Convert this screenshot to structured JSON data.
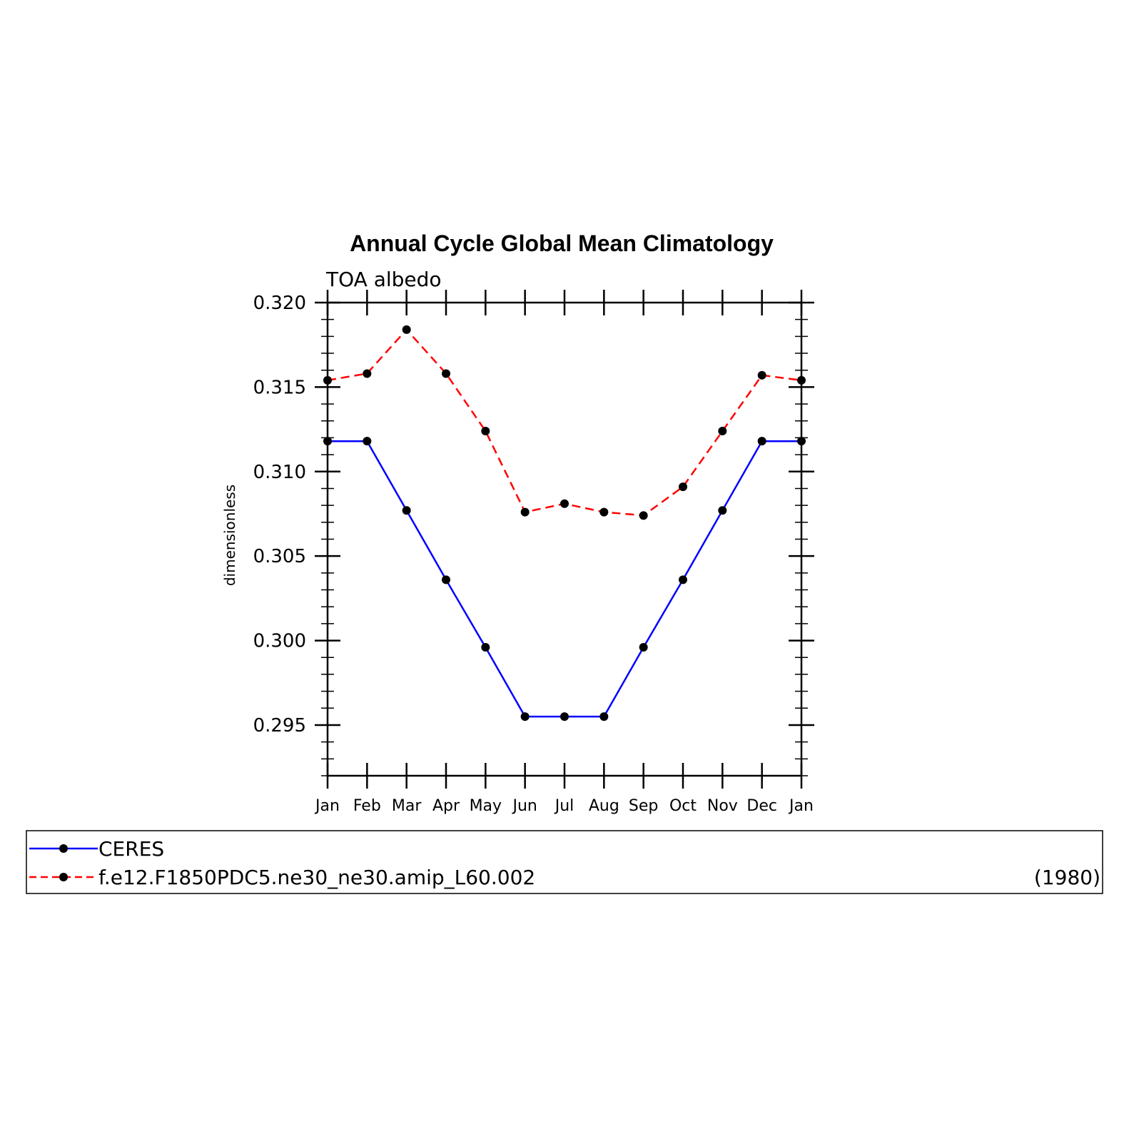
{
  "chart_data": {
    "type": "line",
    "title": "Annual Cycle Global Mean Climatology",
    "subtitle": "TOA albedo",
    "xlabel": "",
    "ylabel": "dimensionless",
    "categories": [
      "Jan",
      "Feb",
      "Mar",
      "Apr",
      "May",
      "Jun",
      "Jul",
      "Aug",
      "Sep",
      "Oct",
      "Nov",
      "Dec",
      "Jan"
    ],
    "ylim": [
      0.292,
      0.32
    ],
    "yticks": [
      "0.295",
      "0.300",
      "0.305",
      "0.310",
      "0.315",
      "0.320"
    ],
    "ytick_values": [
      0.295,
      0.3,
      0.305,
      0.31,
      0.315,
      0.32
    ],
    "series": [
      {
        "name": "CERES",
        "color": "#0000ff",
        "line_style": "solid",
        "values": [
          0.3118,
          0.3118,
          0.3077,
          0.3036,
          0.2996,
          0.2955,
          0.2955,
          0.2955,
          0.2996,
          0.3036,
          0.3077,
          0.3118,
          0.3118
        ]
      },
      {
        "name": "f.e12.F1850PDC5.ne30_ne30.amip_L60.002",
        "color": "#ff0000",
        "line_style": "dashed",
        "values": [
          0.3154,
          0.3158,
          0.3184,
          0.3158,
          0.3124,
          0.3076,
          0.3081,
          0.3076,
          0.3074,
          0.3091,
          0.3124,
          0.3157,
          0.3154
        ]
      }
    ],
    "legend": {
      "placement": "bottom",
      "entries": [
        "CERES",
        "f.e12.F1850PDC5.ne30_ne30.amip_L60.002"
      ],
      "note": "(1980)"
    },
    "grid": false
  }
}
